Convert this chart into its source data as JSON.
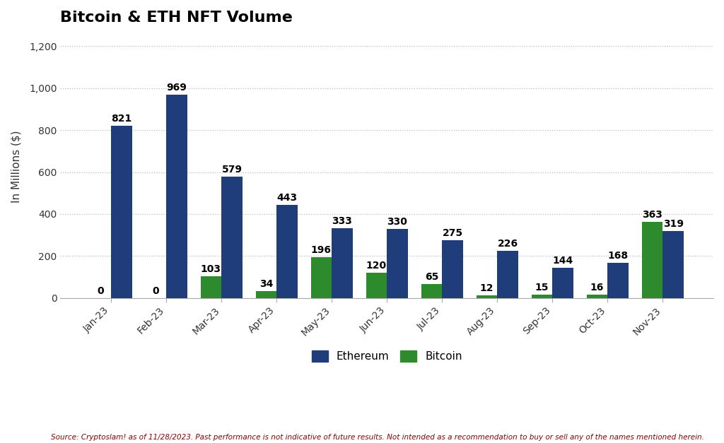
{
  "title": "Bitcoin & ETH NFT Volume",
  "ylabel": "In Millions ($)",
  "months": [
    "Jan-23",
    "Feb-23",
    "Mar-23",
    "Apr-23",
    "May-23",
    "Jun-23",
    "Jul-23",
    "Aug-23",
    "Sep-23",
    "Oct-23",
    "Nov-23"
  ],
  "ethereum": [
    821,
    969,
    579,
    443,
    333,
    330,
    275,
    226,
    144,
    168,
    319
  ],
  "bitcoin": [
    0,
    0,
    103,
    34,
    196,
    120,
    65,
    12,
    15,
    16,
    363
  ],
  "ethereum_color": "#1F3D7A",
  "bitcoin_color": "#2D8A2D",
  "ylim": [
    0,
    1250
  ],
  "yticks": [
    0,
    200,
    400,
    600,
    800,
    1000,
    1200
  ],
  "ytick_labels": [
    "0",
    "200",
    "400",
    "600",
    "800",
    "1,000",
    "1,200"
  ],
  "bar_width": 0.38,
  "legend_labels": [
    "Ethereum",
    "Bitcoin"
  ],
  "footnote": "Source: Cryptoslam! as of 11/28/2023. Past performance is not indicative of future results. Not intended as a recommendation to buy or sell any of the names mentioned herein.",
  "background_color": "#FFFFFF",
  "title_fontsize": 16,
  "label_fontsize": 11,
  "tick_fontsize": 10,
  "annotation_fontsize": 10,
  "footnote_fontsize": 7.5,
  "footnote_color": "#8B0000",
  "grid_color": "#BBBBBB",
  "title_color": "#000000",
  "axis_label_color": "#333333"
}
